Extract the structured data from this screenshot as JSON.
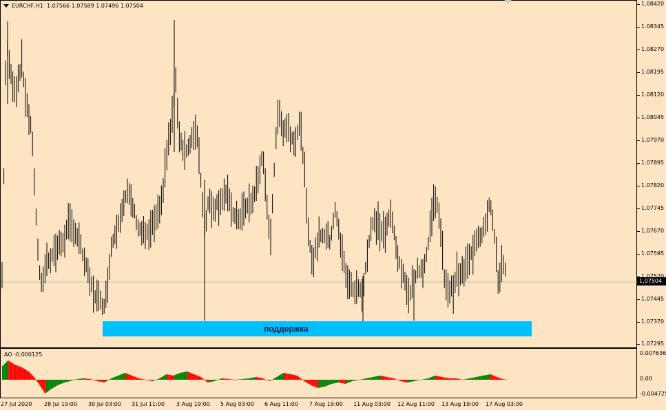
{
  "header": {
    "symbol": "EURCHF,H1",
    "ohlc": "1.07566 1.07589 1.07496 1.07504"
  },
  "price_axis": {
    "labels": [
      "1.08420",
      "1.08345",
      "1.08270",
      "1.08195",
      "1.08120",
      "1.08045",
      "1.07970",
      "1.07895",
      "1.07820",
      "1.07745",
      "1.07670",
      "1.07595",
      "1.07520",
      "1.07445",
      "1.07370",
      "1.07295"
    ],
    "current_price": "1.07504"
  },
  "support_zone": {
    "label": "поддержка",
    "color": "#00bfff"
  },
  "indicator": {
    "name": "AO",
    "title": "AO -0.000125",
    "axis_labels": [
      "0.007636",
      "0.00",
      "-0.004725"
    ],
    "up_color": "#008000",
    "down_color": "#ff0000"
  },
  "time_axis": {
    "labels": [
      "27 Jul 2020",
      "28 Jul 19:00",
      "30 Jul 03:00",
      "31 Jul 11:00",
      "3 Aug 19:00",
      "5 Aug 03:00",
      "6 Aug 11:00",
      "7 Aug 19:00",
      "11 Aug 03:00",
      "12 Aug 11:00",
      "13 Aug 19:00",
      "17 Aug 03:00"
    ]
  },
  "colors": {
    "background": "#fde4c3",
    "bars": "#000000",
    "price_line": "#c0c0c0"
  }
}
